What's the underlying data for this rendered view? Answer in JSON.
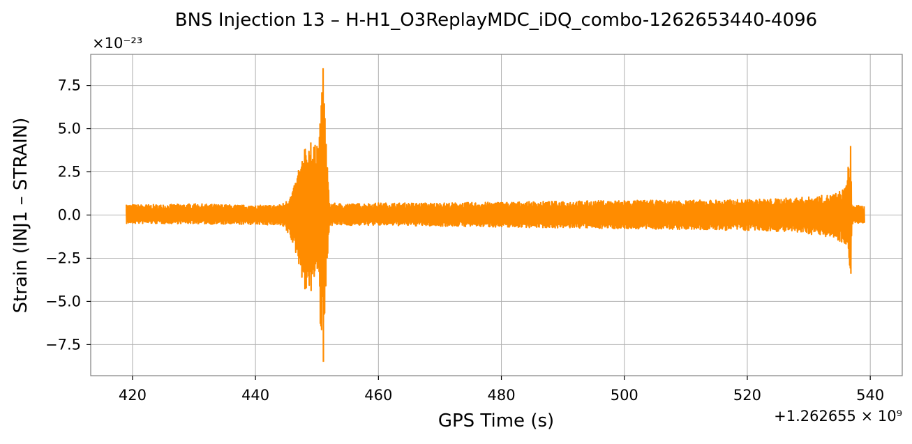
{
  "chart_data": {
    "type": "line",
    "title": "BNS Injection 13 – H-H1_O3ReplayMDC_iDQ_combo-1262653440-4096",
    "xlabel": "GPS Time (s)",
    "ylabel": "Strain (INJ1 – STRAIN)",
    "x_offset_label": "+1.262655 × 10⁹",
    "y_scale_label": "×10⁻²³",
    "xlim": [
      413.2,
      545.2
    ],
    "ylim": [
      -9.3,
      9.3
    ],
    "x_ticks": [
      420,
      440,
      460,
      480,
      500,
      520,
      540
    ],
    "x_tick_labels": [
      "420",
      "440",
      "460",
      "480",
      "500",
      "520",
      "540"
    ],
    "y_ticks": [
      7.5,
      5.0,
      2.5,
      0.0,
      -2.5,
      -5.0,
      -7.5
    ],
    "y_tick_labels": [
      "7.5",
      "5.0",
      "2.5",
      "0.0",
      "−2.5",
      "−5.0",
      "−7.5"
    ],
    "grid": true,
    "series": [
      {
        "color": "#ff8c00",
        "x_range": [
          419,
          539
        ],
        "envelope_x": [
          419,
          425,
          430,
          435,
          440,
          444,
          445,
          446,
          447,
          448,
          449,
          450,
          450.5,
          451,
          452,
          455,
          460,
          470,
          480,
          490,
          500,
          510,
          520,
          525,
          530,
          534,
          536,
          536.8,
          537,
          538,
          539
        ],
        "envelope_max": [
          0.6,
          0.6,
          0.65,
          0.6,
          0.55,
          0.6,
          0.8,
          1.3,
          2.6,
          3.8,
          4.2,
          4.0,
          5.3,
          8.5,
          0.7,
          0.65,
          0.7,
          0.7,
          0.75,
          0.8,
          0.85,
          0.85,
          0.9,
          0.95,
          1.05,
          1.2,
          1.6,
          4.0,
          0.6,
          0.55,
          0.5
        ],
        "envelope_min": [
          -0.5,
          -0.5,
          -0.5,
          -0.55,
          -0.55,
          -0.6,
          -0.9,
          -1.6,
          -2.8,
          -4.3,
          -4.4,
          -3.0,
          -6.3,
          -8.5,
          -0.6,
          -0.6,
          -0.6,
          -0.65,
          -0.7,
          -0.75,
          -0.8,
          -0.85,
          -0.9,
          -0.95,
          -1.1,
          -1.3,
          -1.7,
          -3.4,
          -0.5,
          -0.5,
          -0.45
        ]
      }
    ]
  }
}
